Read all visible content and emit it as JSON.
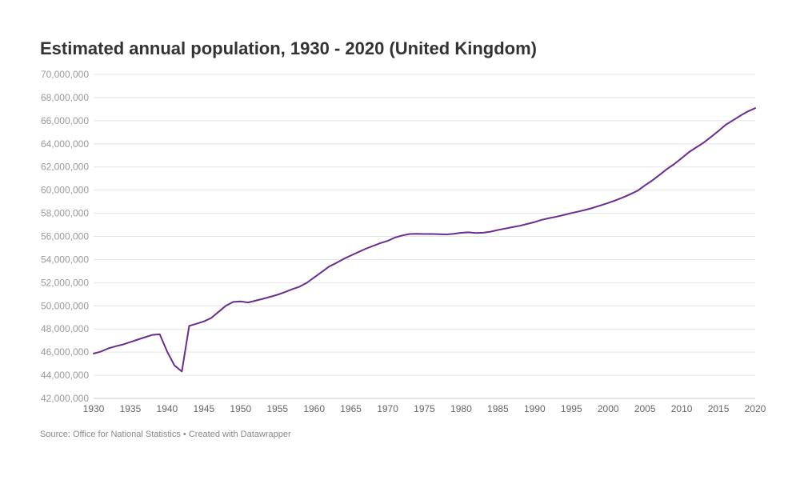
{
  "chart_data": {
    "type": "line",
    "title": "Estimated annual population, 1930 - 2020 (United Kingdom)",
    "xlabel": "",
    "ylabel": "",
    "xlim": [
      1930,
      2020
    ],
    "ylim": [
      42000000,
      70000000
    ],
    "x_ticks": [
      1930,
      1935,
      1940,
      1945,
      1950,
      1955,
      1960,
      1965,
      1970,
      1975,
      1980,
      1985,
      1990,
      1995,
      2000,
      2005,
      2010,
      2015,
      2020
    ],
    "y_ticks": [
      42000000,
      44000000,
      46000000,
      48000000,
      50000000,
      52000000,
      54000000,
      56000000,
      58000000,
      60000000,
      62000000,
      64000000,
      66000000,
      68000000,
      70000000
    ],
    "y_tick_labels": [
      "42,000,000",
      "44,000,000",
      "46,000,000",
      "48,000,000",
      "50,000,000",
      "52,000,000",
      "54,000,000",
      "56,000,000",
      "58,000,000",
      "60,000,000",
      "62,000,000",
      "64,000,000",
      "66,000,000",
      "68,000,000",
      "70,000,000"
    ],
    "grid": true,
    "line_color": "#6a2c91",
    "series": [
      {
        "x": [
          1930,
          1931,
          1932,
          1933,
          1934,
          1935,
          1936,
          1937,
          1938,
          1939,
          1940,
          1941,
          1942,
          1943,
          1944,
          1945,
          1946,
          1947,
          1948,
          1949,
          1950,
          1951,
          1952,
          1953,
          1954,
          1955,
          1956,
          1957,
          1958,
          1959,
          1960,
          1961,
          1962,
          1963,
          1964,
          1965,
          1966,
          1967,
          1968,
          1969,
          1970,
          1971,
          1972,
          1973,
          1974,
          1975,
          1976,
          1977,
          1978,
          1979,
          1980,
          1981,
          1982,
          1983,
          1984,
          1985,
          1986,
          1987,
          1988,
          1989,
          1990,
          1991,
          1992,
          1993,
          1994,
          1995,
          1996,
          1997,
          1998,
          1999,
          2000,
          2001,
          2002,
          2003,
          2004,
          2005,
          2006,
          2007,
          2008,
          2009,
          2010,
          2011,
          2012,
          2013,
          2014,
          2015,
          2016,
          2017,
          2018,
          2019,
          2020
        ],
        "values": [
          45870000,
          46050000,
          46320000,
          46510000,
          46660000,
          46870000,
          47080000,
          47290000,
          47490000,
          47540000,
          46050000,
          44850000,
          44320000,
          48270000,
          48450000,
          48650000,
          48950000,
          49480000,
          50010000,
          50340000,
          50380000,
          50290000,
          50440000,
          50600000,
          50770000,
          50950000,
          51180000,
          51430000,
          51650000,
          51990000,
          52450000,
          52910000,
          53380000,
          53700000,
          54050000,
          54350000,
          54640000,
          54930000,
          55180000,
          55420000,
          55610000,
          55900000,
          56080000,
          56210000,
          56220000,
          56210000,
          56210000,
          56190000,
          56170000,
          56230000,
          56310000,
          56350000,
          56290000,
          56320000,
          56410000,
          56550000,
          56680000,
          56800000,
          56920000,
          57080000,
          57240000,
          57440000,
          57580000,
          57710000,
          57860000,
          58020000,
          58160000,
          58310000,
          58480000,
          58680000,
          58890000,
          59120000,
          59370000,
          59640000,
          59950000,
          60410000,
          60830000,
          61320000,
          61820000,
          62260000,
          62760000,
          63290000,
          63700000,
          64110000,
          64600000,
          65110000,
          65650000,
          66040000,
          66440000,
          66800000,
          67080000
        ]
      }
    ]
  },
  "source": "Source: Office for National Statistics • Created with Datawrapper"
}
